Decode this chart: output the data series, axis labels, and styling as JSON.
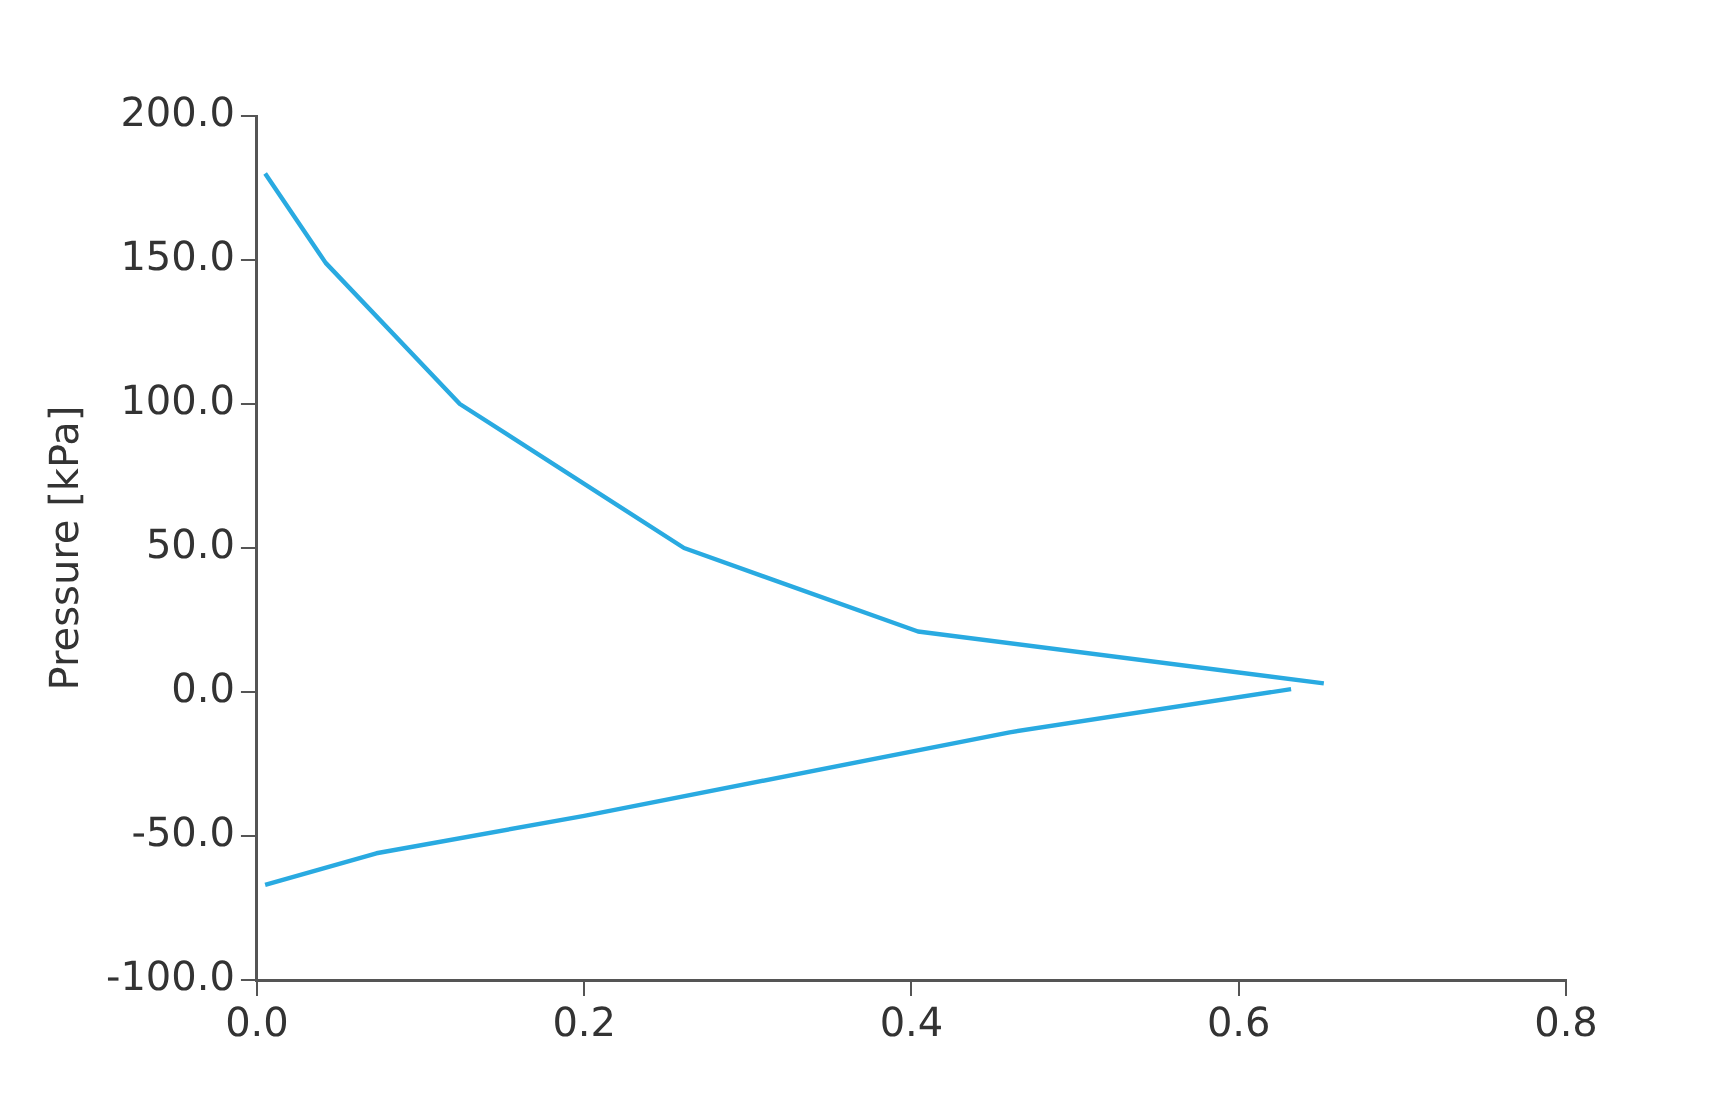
{
  "chart_data": {
    "type": "line",
    "ylabel": "Pressure [kPa]",
    "xlim": [
      0,
      0.8
    ],
    "ylim": [
      -100,
      200
    ],
    "xticks": [
      {
        "value": 0,
        "label": "0.0"
      },
      {
        "value": 0.2,
        "label": "0.2"
      },
      {
        "value": 0.4,
        "label": "0.4"
      },
      {
        "value": 0.6,
        "label": "0.6"
      },
      {
        "value": 0.8,
        "label": "0.8"
      }
    ],
    "yticks": [
      {
        "value": -100,
        "label": "-100.0"
      },
      {
        "value": -50,
        "label": "-50.0"
      },
      {
        "value": 0,
        "label": "0.0"
      },
      {
        "value": 50,
        "label": "50.0"
      },
      {
        "value": 100,
        "label": "100.0"
      },
      {
        "value": 150,
        "label": "150.0"
      },
      {
        "value": 200,
        "label": "200.0"
      }
    ],
    "grid": false,
    "legend": false,
    "marker": "none",
    "line_style": "solid",
    "series": [
      {
        "color": "#29aae1",
        "x": [
          0.005,
          0.042,
          0.124,
          0.261,
          0.404,
          0.652
        ],
        "values": [
          180,
          149,
          100,
          50,
          21,
          3
        ]
      },
      {
        "color": "#29aae1",
        "x": [
          0.005,
          0.073,
          0.2,
          0.46,
          0.632
        ],
        "values": [
          -67,
          -56,
          -43,
          -14,
          1
        ]
      }
    ]
  }
}
